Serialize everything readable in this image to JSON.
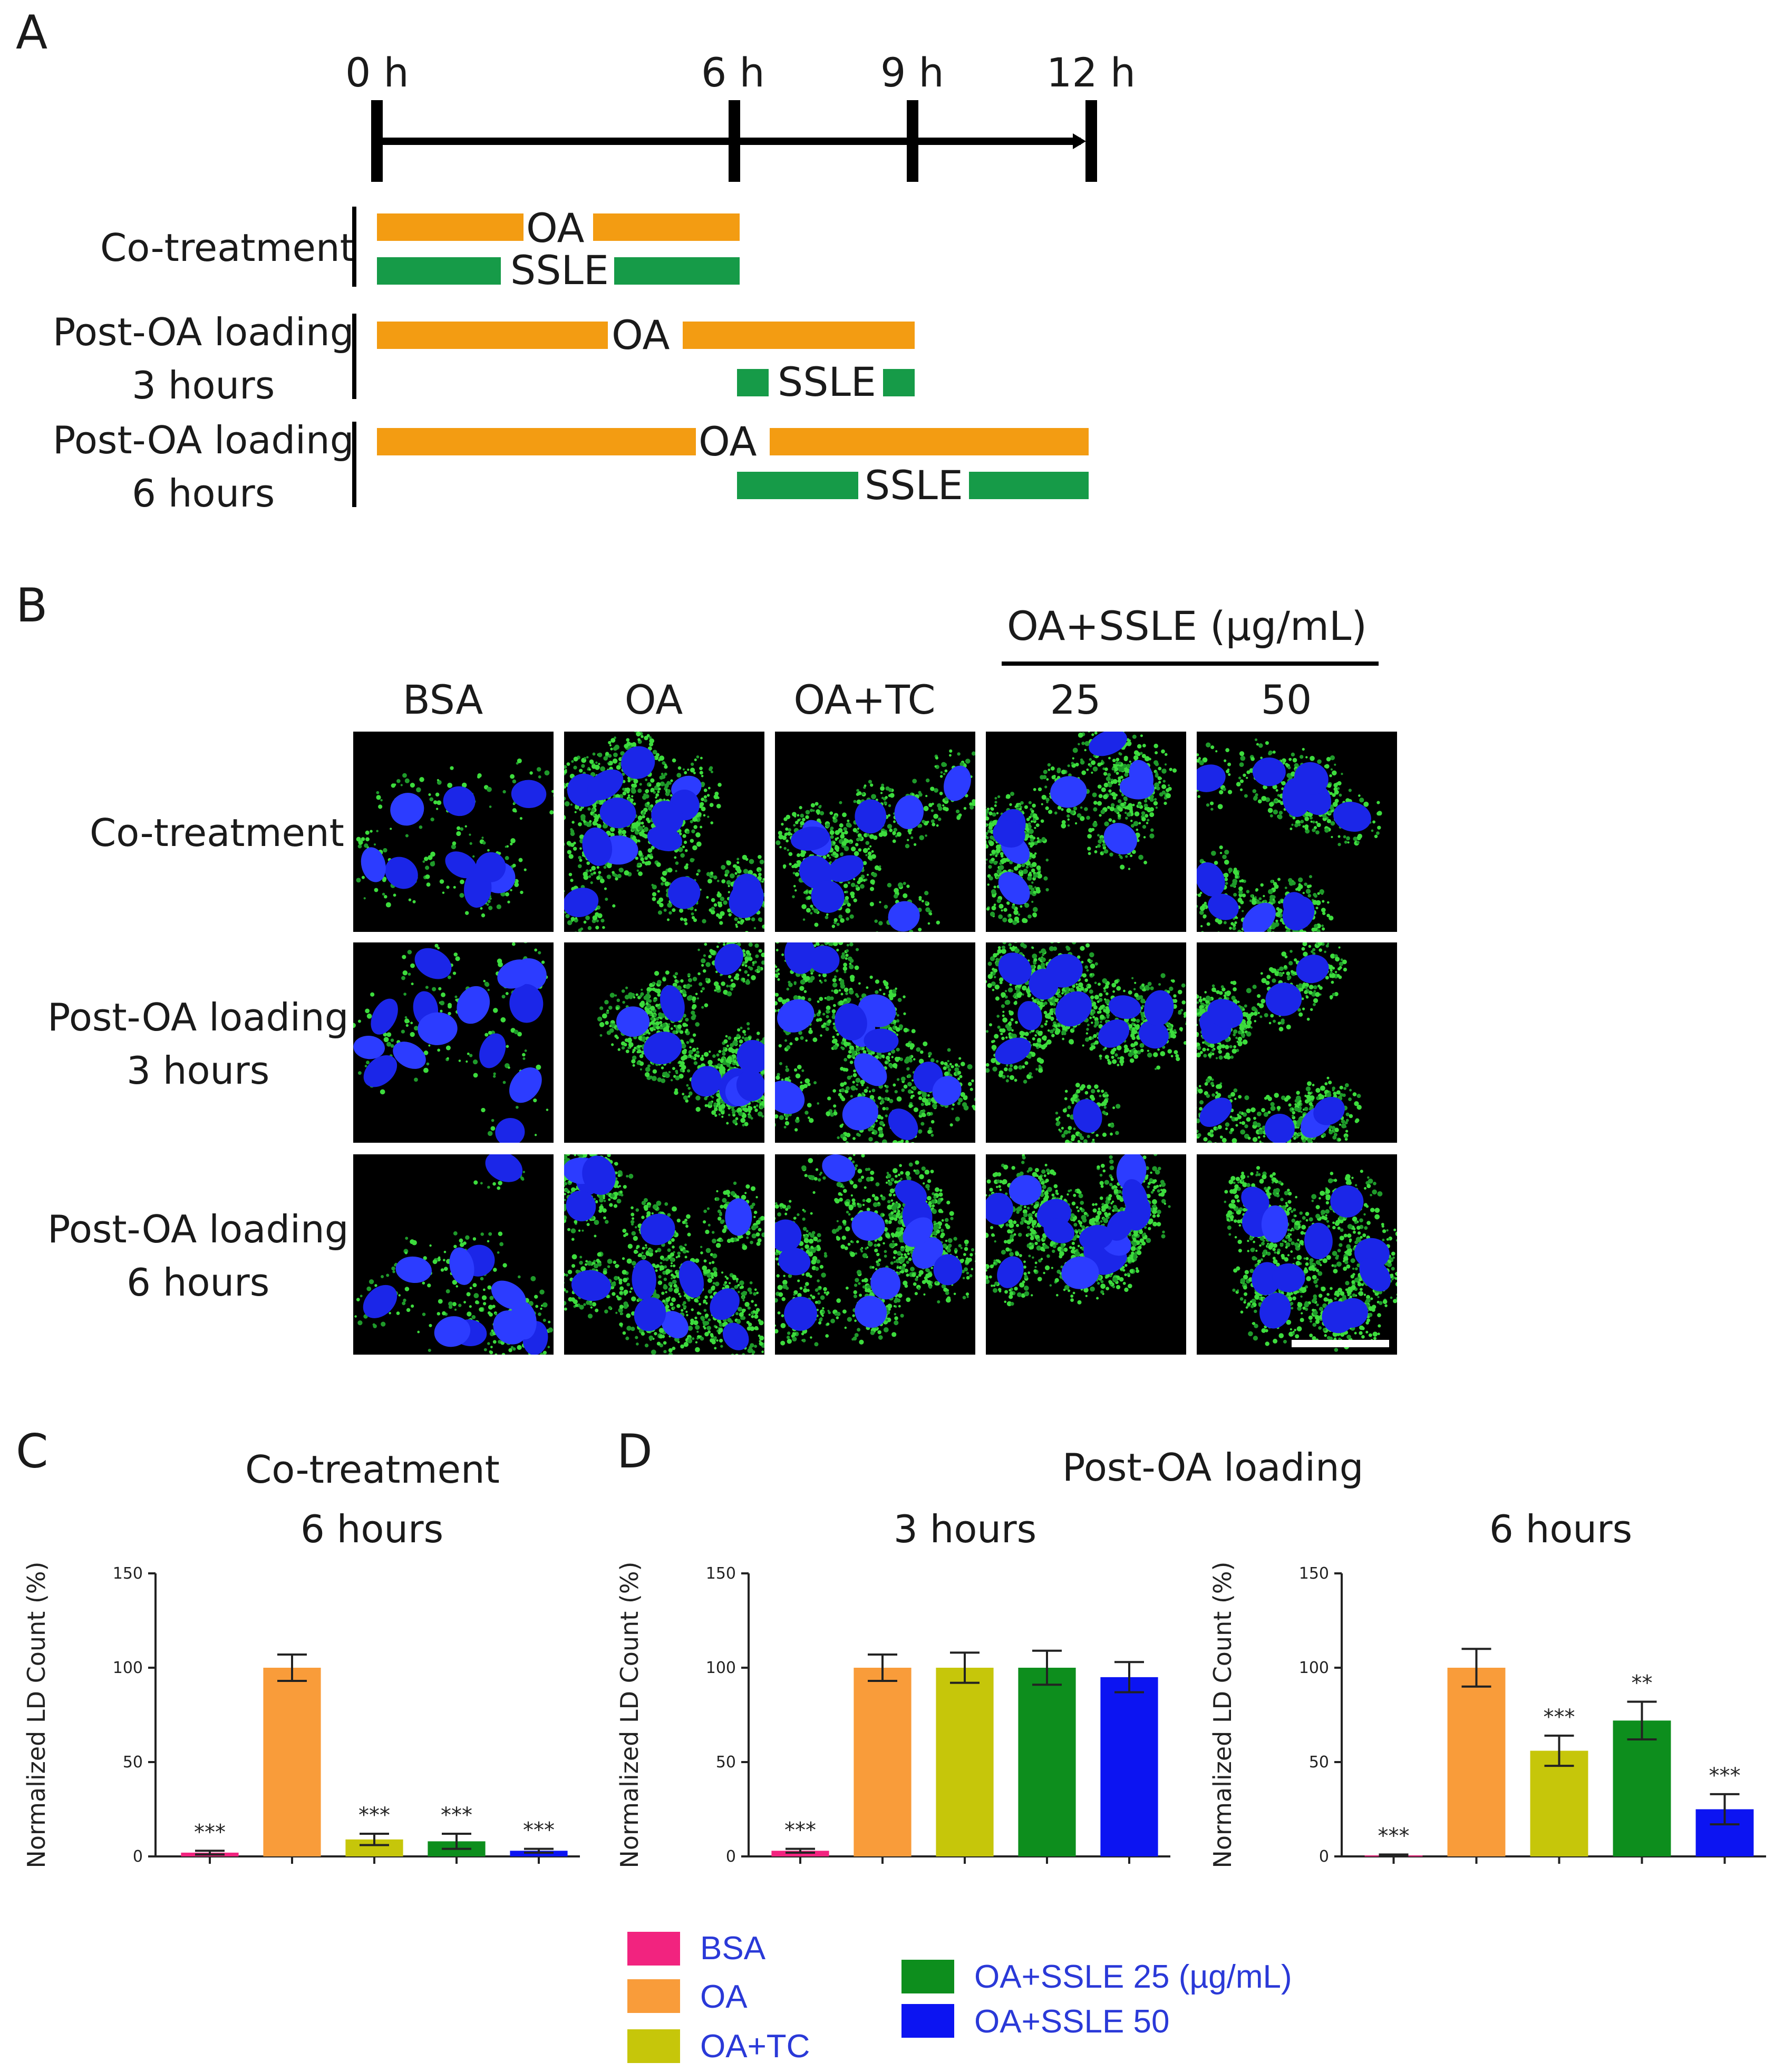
{
  "panels": {
    "a": {
      "letter": "A",
      "time_labels": [
        "0 h",
        "6 h",
        "9 h",
        "12 h"
      ],
      "rows": [
        {
          "label": "Co-treatment",
          "oa": "OA",
          "ssle": "SSLE"
        },
        {
          "label_line1": "Post-OA loading",
          "label_line2": "3 hours",
          "oa": "OA",
          "ssle": "SSLE"
        },
        {
          "label_line1": "Post-OA loading",
          "label_line2": "6 hours",
          "oa": "OA",
          "ssle": "SSLE"
        }
      ]
    },
    "b": {
      "letter": "B",
      "group_header": "OA+SSLE (µg/mL)",
      "columns": [
        "BSA",
        "OA",
        "OA+TC",
        "25",
        "50"
      ],
      "rows": [
        {
          "label_line1": "Co-treatment",
          "label_line2": ""
        },
        {
          "label_line1": "Post-OA loading",
          "label_line2": "3 hours"
        },
        {
          "label_line1": "Post-OA loading",
          "label_line2": "6 hours"
        }
      ],
      "green_density": [
        [
          0.15,
          0.9,
          0.55,
          0.7,
          0.6
        ],
        [
          0.15,
          0.95,
          0.9,
          0.9,
          0.75
        ],
        [
          0.2,
          1.0,
          0.9,
          0.95,
          0.95
        ]
      ]
    },
    "c": {
      "letter": "C",
      "title_line1": "Co-treatment",
      "title_line2": "6 hours"
    },
    "d": {
      "letter": "D",
      "title": "Post-OA loading",
      "sub1": "3 hours",
      "sub2": "6 hours"
    }
  },
  "chart_data": [
    {
      "type": "bar",
      "title": "Co-treatment 6 hours",
      "ylabel": "Normalized LD Count (%)",
      "ylim": [
        0,
        150
      ],
      "yticks": [
        "0",
        "50",
        "100",
        "150"
      ],
      "categories": [
        "BSA",
        "OA",
        "OA+TC",
        "OA+SSLE 25 (µg/mL)",
        "OA+SSLE 50"
      ],
      "values": [
        2,
        100,
        9,
        8,
        3
      ],
      "errors": [
        1,
        7,
        3,
        4,
        1
      ],
      "significance": [
        "***",
        "",
        "***",
        "***",
        "***"
      ]
    },
    {
      "type": "bar",
      "title": "Post-OA loading 3 hours",
      "ylabel": "Normalized LD Count (%)",
      "ylim": [
        0,
        150
      ],
      "yticks": [
        "0",
        "50",
        "100",
        "150"
      ],
      "categories": [
        "BSA",
        "OA",
        "OA+TC",
        "OA+SSLE 25 (µg/mL)",
        "OA+SSLE 50"
      ],
      "values": [
        3,
        100,
        100,
        100,
        95
      ],
      "errors": [
        1,
        7,
        8,
        9,
        8
      ],
      "significance": [
        "***",
        "",
        "",
        "",
        ""
      ]
    },
    {
      "type": "bar",
      "title": "Post-OA loading 6 hours",
      "ylabel": "Normalized LD Count (%)",
      "ylim": [
        0,
        150
      ],
      "yticks": [
        "0",
        "50",
        "100",
        "150"
      ],
      "categories": [
        "BSA",
        "OA",
        "OA+TC",
        "OA+SSLE 25 (µg/mL)",
        "OA+SSLE 50"
      ],
      "values": [
        0.5,
        100,
        56,
        72,
        25
      ],
      "errors": [
        0.5,
        10,
        8,
        10,
        8
      ],
      "significance": [
        "***",
        "",
        "***",
        "**",
        "***"
      ]
    }
  ],
  "colors": [
    "#f2237f",
    "#f99c3a",
    "#c6c60a",
    "#0d8e1d",
    "#0c14f2"
  ],
  "legend": [
    "BSA",
    "OA",
    "OA+TC",
    "OA+SSLE 25 (µg/mL)",
    "OA+SSLE 50"
  ]
}
